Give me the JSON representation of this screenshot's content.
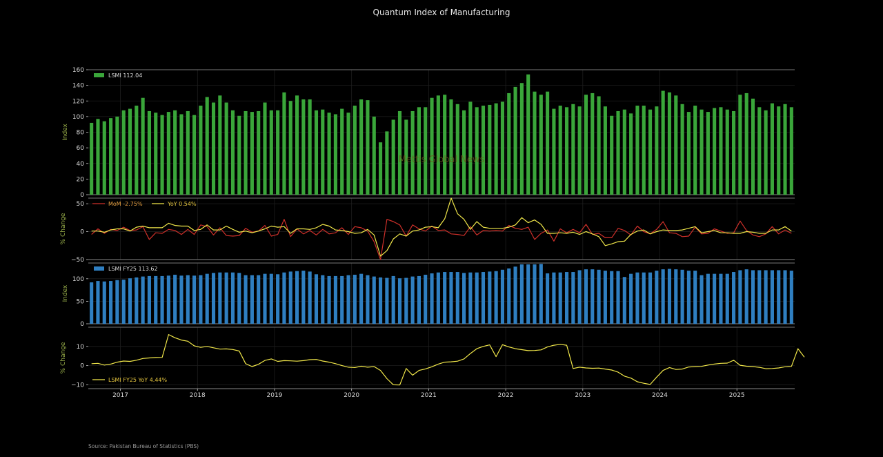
{
  "title": "Quantum Index of Manufacturing",
  "source": "Source: Pakistan Bureau of Statistics (PBS)",
  "watermark": "Mettis Global News",
  "colors": {
    "green": "#3aa63a",
    "blue": "#2f7fc1",
    "red": "#d0302a",
    "yellow": "#f2e84a",
    "axis_label": "#9ab04a",
    "legend_mom": "#e8a040",
    "legend_yoy": "#e8c840"
  },
  "chart_data": [
    {
      "type": "bar",
      "panel": "lsmi",
      "ylabel": "Index",
      "ylim": [
        0,
        160
      ],
      "yticks": [
        0,
        20,
        40,
        60,
        80,
        100,
        120,
        140,
        160
      ],
      "legend": "LSMI 112.04",
      "legend_position": "top-left",
      "x_start": "2016-08",
      "values": [
        92,
        97,
        94,
        98,
        100,
        108,
        110,
        114,
        124,
        107,
        105,
        102,
        106,
        108,
        103,
        107,
        102,
        114,
        125,
        118,
        127,
        118,
        108,
        101,
        107,
        106,
        107,
        118,
        108,
        108,
        131,
        120,
        127,
        122,
        122,
        108,
        109,
        105,
        103,
        110,
        105,
        114,
        122,
        121,
        100,
        67,
        81,
        96,
        107,
        96,
        107,
        112,
        112,
        124,
        127,
        128,
        122,
        116,
        108,
        119,
        112,
        114,
        115,
        117,
        119,
        130,
        138,
        143,
        154,
        132,
        128,
        132,
        110,
        114,
        112,
        116,
        113,
        128,
        130,
        126,
        113,
        101,
        107,
        109,
        104,
        114,
        114,
        109,
        113,
        133,
        131,
        127,
        116,
        106,
        114,
        109,
        106,
        111,
        112,
        109,
        107,
        128,
        130,
        123,
        112,
        108,
        117,
        113,
        116,
        112
      ],
      "x_ticks": [
        "2017",
        "2018",
        "2019",
        "2020",
        "2021",
        "2022",
        "2023",
        "2024",
        "2025"
      ],
      "grid": true
    },
    {
      "type": "line",
      "panel": "change",
      "ylabel": "% Change",
      "ylim": [
        -50,
        60
      ],
      "yticks": [
        -50,
        0,
        50
      ],
      "legend_position": "top-left",
      "series": [
        {
          "name": "MoM -2.75%",
          "values": [
            -5,
            5,
            -3,
            4,
            2,
            8,
            2,
            3,
            9,
            -14,
            -2,
            -3,
            4,
            2,
            -5,
            4,
            -5,
            12,
            9,
            -6,
            7,
            -7,
            -8,
            -7,
            6,
            -1,
            1,
            11,
            -8,
            -5,
            22,
            -9,
            5,
            -4,
            2,
            -6,
            4,
            -4,
            -2,
            7,
            -5,
            9,
            7,
            1,
            -18,
            -50,
            22,
            18,
            12,
            -8,
            12,
            5,
            1,
            10,
            2,
            3,
            -4,
            -5,
            -7,
            9,
            -6,
            2,
            1,
            2,
            1,
            11,
            6,
            4,
            8,
            -14,
            -3,
            3,
            -17,
            5,
            -2,
            4,
            -2,
            13,
            -5,
            -3,
            -11,
            -11,
            6,
            2,
            -6,
            10,
            0,
            -4,
            4,
            18,
            -2,
            -3,
            -9,
            -8,
            8,
            -4,
            -3,
            5,
            1,
            -3,
            -2,
            19,
            2,
            -6,
            -9,
            -4,
            9,
            -4,
            3,
            -3
          ],
          "color": "#d0302a"
        },
        {
          "name": "YoY 0.54%",
          "values": [
            1,
            1,
            -1,
            3,
            5,
            5,
            1,
            8,
            10,
            7,
            7,
            7,
            15,
            11,
            10,
            10,
            2,
            4,
            12,
            3,
            3,
            10,
            4,
            -1,
            1,
            -2,
            1,
            5,
            10,
            8,
            9,
            -3,
            5,
            5,
            4,
            7,
            13,
            10,
            3,
            2,
            0,
            -3,
            -2,
            4,
            -6,
            -44,
            -34,
            -13,
            -4,
            -8,
            1,
            3,
            8,
            9,
            7,
            23,
            82,
            32,
            22,
            4,
            18,
            8,
            6,
            6,
            6,
            8,
            12,
            25,
            16,
            21,
            13,
            -3,
            -3,
            -2,
            -3,
            -1,
            -5,
            0,
            -4,
            -9,
            -25,
            -22,
            -18,
            -17,
            -5,
            1,
            3,
            -4,
            0,
            3,
            2,
            2,
            3,
            6,
            9,
            -2,
            0,
            2,
            -2,
            -2,
            -3,
            -3,
            0,
            -1,
            -3,
            -3,
            3,
            3,
            9,
            1
          ],
          "color": "#f2e84a"
        }
      ],
      "grid": true
    },
    {
      "type": "bar",
      "panel": "fy25",
      "ylabel": "Index",
      "ylim": [
        0,
        135
      ],
      "yticks": [
        0,
        50,
        100
      ],
      "legend": "LSMI FY25 113.62",
      "legend_position": "top-left",
      "values": [
        92,
        95,
        94,
        95,
        97,
        98,
        101,
        103,
        105,
        106,
        106,
        106,
        107,
        109,
        107,
        108,
        107,
        108,
        111,
        113,
        114,
        114,
        114,
        113,
        108,
        108,
        108,
        111,
        111,
        110,
        114,
        116,
        117,
        118,
        116,
        110,
        108,
        106,
        106,
        106,
        108,
        109,
        111,
        108,
        105,
        103,
        102,
        106,
        101,
        102,
        105,
        106,
        109,
        112,
        114,
        115,
        115,
        115,
        113,
        114,
        114,
        115,
        116,
        117,
        120,
        123,
        127,
        132,
        132,
        132,
        133,
        112,
        114,
        114,
        115,
        115,
        119,
        121,
        121,
        120,
        118,
        117,
        117,
        104,
        111,
        114,
        114,
        114,
        118,
        121,
        122,
        121,
        120,
        118,
        118,
        108,
        111,
        111,
        111,
        111,
        115,
        119,
        121,
        119,
        119,
        119,
        119,
        119,
        119,
        118
      ],
      "grid": true
    },
    {
      "type": "line",
      "panel": "fy25-yoy",
      "ylabel": "% Change",
      "ylim": [
        -12,
        20
      ],
      "yticks": [
        -10,
        0,
        10
      ],
      "series": [
        {
          "name": "LSMI FY25 YoY 4.44%",
          "values": [
            1,
            1.2,
            0.3,
            0.8,
            1.8,
            2.4,
            2.2,
            2.8,
            3.7,
            4.0,
            4.2,
            4.3,
            16.2,
            14.5,
            13.3,
            12.7,
            10.3,
            9.5,
            10.0,
            9.3,
            8.6,
            8.7,
            8.4,
            7.6,
            1.0,
            -0.5,
            0.7,
            2.7,
            3.5,
            2.2,
            2.6,
            2.5,
            2.3,
            2.6,
            3.1,
            3.2,
            2.4,
            1.8,
            1.0,
            0,
            -0.8,
            -1.0,
            -0.3,
            -0.8,
            -0.5,
            -2.5,
            -6.8,
            -10.0,
            -10.1,
            -1.5,
            -5.0,
            -2.5,
            -1.7,
            -0.6,
            0.8,
            1.8,
            2.0,
            2.3,
            3.5,
            6.3,
            8.8,
            10.0,
            10.8,
            4.7,
            10.9,
            9.7,
            8.8,
            8.3,
            7.8,
            7.9,
            8.2,
            9.7,
            10.6,
            11.1,
            10.6,
            -1.5,
            -0.8,
            -1.2,
            -1.4,
            -1.3,
            -1.8,
            -2.3,
            -3.4,
            -5.5,
            -6.5,
            -8.4,
            -9.2,
            -9.8,
            -6.0,
            -2.5,
            -1.0,
            -2.0,
            -1.8,
            -0.7,
            -0.5,
            -0.4,
            0.3,
            0.8,
            1.2,
            1.3,
            2.8,
            0.2,
            -0.3,
            -0.5,
            -0.9,
            -1.6,
            -1.5,
            -1.2,
            -0.6,
            -0.4,
            8.8,
            4.4
          ],
          "color": "#f2e84a"
        }
      ],
      "x_ticks": [
        "2017",
        "2018",
        "2019",
        "2020",
        "2021",
        "2022",
        "2023",
        "2024",
        "2025"
      ],
      "grid": true
    }
  ]
}
